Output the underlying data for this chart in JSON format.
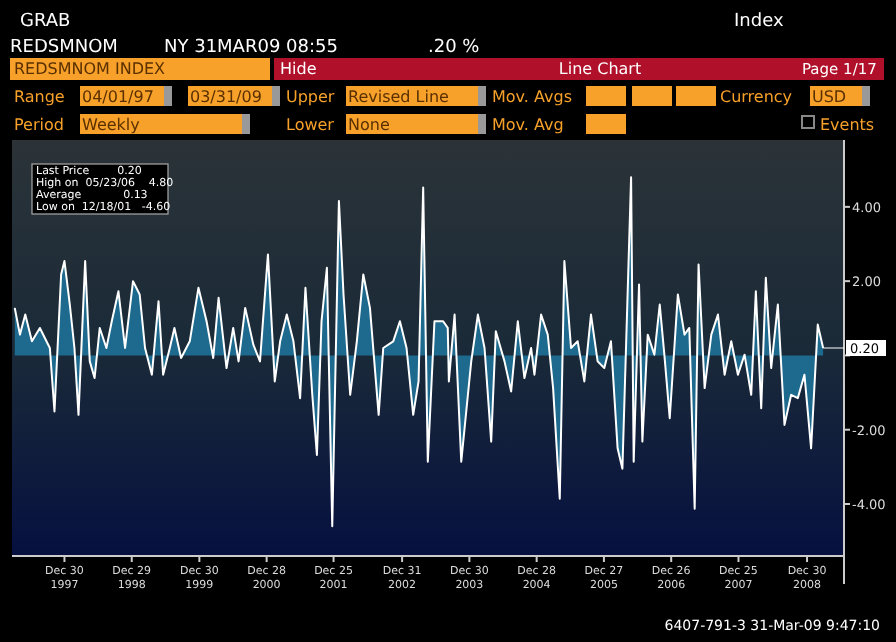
{
  "chart_data": {
    "type": "area",
    "title": "REDSMNOM INDEX",
    "annotations": [
      "GRAB",
      "Index",
      "REDSMNOM",
      "NY 31MAR09 08:55",
      ".20 %",
      "Hide",
      "Line Chart",
      "Page 1/17",
      "Range",
      "04/01/97",
      "03/31/09",
      "Upper",
      "Revised Line",
      "Mov. Avgs",
      "Currency",
      "USD",
      "Period",
      "Weekly",
      "Lower",
      "None",
      "Mov. Avg",
      "Events",
      "Last Price        0.20",
      "High on  05/23/06    4.80",
      "Average            0.13",
      "Low on  12/18/01   -4.60",
      "6407-791-3  31-Mar-09   9:47:10",
      {
        "text": "0.20",
        "x": "2009-03-27",
        "y": 0.2
      }
    ],
    "xlim": [
      "1997-04-01",
      "2009-07-18"
    ],
    "xticks": [
      {
        "value": "1997-12-30",
        "label": "Dec 30\n1997"
      },
      {
        "value": "1998-12-29",
        "label": "Dec 29\n1998"
      },
      {
        "value": "1999-12-30",
        "label": "Dec 30\n1999"
      },
      {
        "value": "2000-12-28",
        "label": "Dec 28\n2000"
      },
      {
        "value": "2001-12-25",
        "label": "Dec 25\n2001"
      },
      {
        "value": "2002-12-31",
        "label": "Dec 31\n2002"
      },
      {
        "value": "2003-12-30",
        "label": "Dec 30\n2003"
      },
      {
        "value": "2004-12-28",
        "label": "Dec 28\n2004"
      },
      {
        "value": "2005-12-27",
        "label": "Dec 27\n2005"
      },
      {
        "value": "2006-12-26",
        "label": "Dec 26\n2006"
      },
      {
        "value": "2007-12-25",
        "label": "Dec 25\n2007"
      },
      {
        "value": "2008-12-30",
        "label": "Dec 30\n2008"
      }
    ],
    "ylim": [
      -5.4,
      5.8
    ],
    "yticks": [
      {
        "value": 4,
        "label": "4.00"
      },
      {
        "value": 2,
        "label": "2.00"
      },
      {
        "value": 0,
        "label": null
      },
      {
        "value": -2,
        "label": "-2.00"
      },
      {
        "value": -4,
        "label": "-4.00"
      }
    ],
    "x": [
      "1997-04-05",
      "1997-05-03",
      "1997-06-01",
      "1997-07-07",
      "1997-08-19",
      "1997-10-12",
      "1997-11-06",
      "1997-12-12",
      "1997-12-30",
      "1998-01-28",
      "1998-02-22",
      "1998-03-16",
      "1998-04-21",
      "1998-05-16",
      "1998-06-11",
      "1998-07-09",
      "1998-08-14",
      "1998-09-12",
      "1998-10-18",
      "1998-11-23",
      "1999-01-05",
      "1999-02-10",
      "1999-03-11",
      "1999-04-17",
      "1999-05-23",
      "1999-06-17",
      "1999-07-23",
      "1999-08-17",
      "1999-09-22",
      "1999-11-08",
      "1999-12-25",
      "2000-02-07",
      "2000-03-14",
      "2000-04-12",
      "2000-05-25",
      "2000-06-30",
      "2000-07-29",
      "2000-09-03",
      "2000-10-17",
      "2000-11-22",
      "2001-01-04",
      "2001-02-10",
      "2001-03-11",
      "2001-04-16",
      "2001-05-22",
      "2001-06-27",
      "2001-07-26",
      "2001-09-01",
      "2001-09-26",
      "2001-10-21",
      "2001-11-19",
      "2001-12-18",
      "2002-01-23",
      "2002-02-17",
      "2002-03-25",
      "2002-04-30",
      "2002-06-04",
      "2002-07-10",
      "2002-08-26",
      "2002-09-20",
      "2002-11-13",
      "2002-12-19",
      "2003-01-24",
      "2003-03-01",
      "2003-03-30",
      "2003-04-24",
      "2003-05-19",
      "2003-06-24",
      "2003-08-10",
      "2003-09-04",
      "2003-09-10",
      "2003-10-11",
      "2003-11-16",
      "2004-01-09",
      "2004-02-14",
      "2004-03-21",
      "2004-04-26",
      "2004-05-21",
      "2004-07-07",
      "2004-08-12",
      "2004-09-17",
      "2004-10-23",
      "2004-11-28",
      "2004-12-16",
      "2005-01-21",
      "2005-02-26",
      "2005-03-27",
      "2005-05-02",
      "2005-05-27",
      "2005-07-02",
      "2005-08-07",
      "2005-09-12",
      "2005-10-18",
      "2005-11-23",
      "2005-12-29",
      "2006-02-03",
      "2006-03-11",
      "2006-04-06",
      "2006-05-23",
      "2006-06-06",
      "2006-07-05",
      "2006-07-23",
      "2006-08-21",
      "2006-09-26",
      "2006-10-25",
      "2006-11-19",
      "2006-12-18",
      "2007-01-31",
      "2007-03-08",
      "2007-04-03",
      "2007-05-02",
      "2007-05-23",
      "2007-06-25",
      "2007-07-31",
      "2007-09-05",
      "2007-10-11",
      "2007-11-16",
      "2007-12-22",
      "2008-01-27",
      "2008-03-03",
      "2008-03-28",
      "2008-04-26",
      "2008-05-21",
      "2008-06-19",
      "2008-07-25",
      "2008-08-30",
      "2008-10-05",
      "2008-11-10",
      "2008-12-16",
      "2009-01-21",
      "2009-02-26",
      "2009-03-27"
    ],
    "series": [
      {
        "color": "#1d6a8e",
        "values": [
          1.28,
          0.56,
          1.1,
          0.38,
          0.74,
          0.2,
          -1.51,
          2.18,
          2.54,
          1.37,
          0.2,
          -1.6,
          2.54,
          -0.16,
          -0.61,
          0.74,
          0.2,
          0.92,
          1.73,
          0.2,
          2.0,
          1.64,
          0.2,
          -0.52,
          1.46,
          -0.52,
          0.2,
          0.74,
          -0.07,
          0.38,
          1.82,
          0.92,
          -0.07,
          1.55,
          -0.34,
          0.74,
          -0.16,
          1.28,
          0.29,
          -0.16,
          2.72,
          -0.7,
          0.38,
          1.1,
          0.38,
          -1.15,
          1.82,
          -1.06,
          -2.68,
          0.92,
          2.36,
          -4.6,
          4.16,
          1.64,
          -1.06,
          0.38,
          2.18,
          1.28,
          -1.6,
          0.2,
          0.38,
          0.92,
          0.2,
          -1.6,
          -0.7,
          4.52,
          -2.86,
          0.92,
          0.92,
          0.74,
          -0.7,
          1.1,
          -2.86,
          -0.16,
          1.1,
          0.2,
          -2.32,
          0.65,
          -0.16,
          -0.97,
          0.92,
          -0.61,
          0.2,
          -0.52,
          1.1,
          0.56,
          -0.88,
          -3.86,
          2.54,
          0.2,
          0.38,
          -0.7,
          1.1,
          -0.16,
          -0.34,
          0.38,
          -2.5,
          -3.05,
          4.8,
          -2.86,
          1.91,
          -2.32,
          0.56,
          0.02,
          1.37,
          0.02,
          -1.69,
          1.64,
          0.56,
          0.74,
          -4.13,
          2.45,
          -0.88,
          0.56,
          1.1,
          -0.52,
          0.38,
          -0.52,
          0.02,
          -1.06,
          1.73,
          -1.42,
          2.09,
          -0.34,
          1.37,
          -1.87,
          -1.06,
          -1.15,
          -0.52,
          -2.5,
          0.83,
          0.2
        ]
      }
    ]
  }
}
